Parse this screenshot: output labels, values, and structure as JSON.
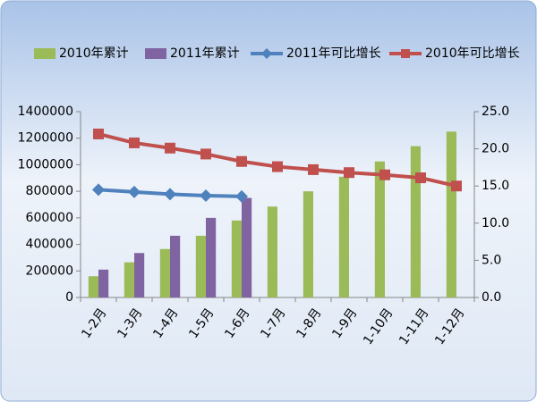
{
  "chart_data": {
    "type": "bar",
    "categories": [
      "1-2月",
      "1-3月",
      "1-4月",
      "1-5月",
      "1-6月",
      "1-7月",
      "1-8月",
      "1-9月",
      "1-10月",
      "1-11月",
      "1-12月"
    ],
    "series": [
      {
        "name": "2010年累计",
        "type": "bar",
        "color": "#9bbb59",
        "values": [
          160000,
          265000,
          365000,
          465000,
          580000,
          685000,
          800000,
          910000,
          1025000,
          1140000,
          1250000
        ]
      },
      {
        "name": "2011年累计",
        "type": "bar",
        "color": "#8064a2",
        "values": [
          210000,
          335000,
          465000,
          600000,
          750000,
          null,
          null,
          null,
          null,
          null,
          null
        ]
      },
      {
        "name": "2011年可比增长",
        "type": "line",
        "axis": "y2",
        "marker": "diamond",
        "color": "#4f81bd",
        "values": [
          14.5,
          14.2,
          13.9,
          13.7,
          13.6,
          null,
          null,
          null,
          null,
          null,
          null
        ]
      },
      {
        "name": "2010年可比增长",
        "type": "line",
        "axis": "y2",
        "marker": "square",
        "color": "#c0504d",
        "values": [
          22.0,
          20.8,
          20.1,
          19.3,
          18.3,
          17.6,
          17.2,
          16.8,
          16.5,
          16.1,
          15.0
        ]
      }
    ],
    "ylim": [
      0,
      1400000
    ],
    "yticks": [
      0,
      200000,
      400000,
      600000,
      800000,
      1000000,
      1200000,
      1400000
    ],
    "y2lim": [
      0,
      25
    ],
    "y2ticks": [
      {
        "value": 0,
        "label": "0.0"
      },
      {
        "value": 5,
        "label": "5.0"
      },
      {
        "value": 10,
        "label": "10.0"
      },
      {
        "value": 15,
        "label": "15.0"
      },
      {
        "value": 20,
        "label": "20.0"
      },
      {
        "value": 25,
        "label": "25.0"
      }
    ],
    "grid": false,
    "legend": "top"
  }
}
